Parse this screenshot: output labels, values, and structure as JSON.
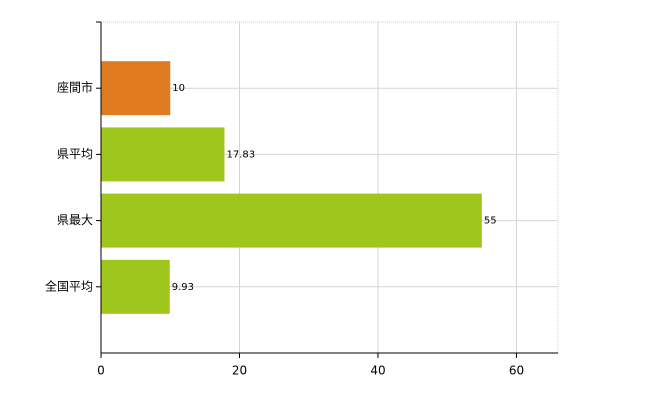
{
  "chart_data": {
    "type": "hbar",
    "categories": [
      "座間市",
      "県平均",
      "県最大",
      "全国平均"
    ],
    "values": [
      10,
      17.83,
      55,
      9.93
    ],
    "colors": [
      "#e07b20",
      "#9ec61c",
      "#9ec61c",
      "#9ec61c"
    ],
    "xlim": [
      0,
      66
    ],
    "xticks": [
      0,
      20,
      40,
      60
    ],
    "grid": true
  }
}
